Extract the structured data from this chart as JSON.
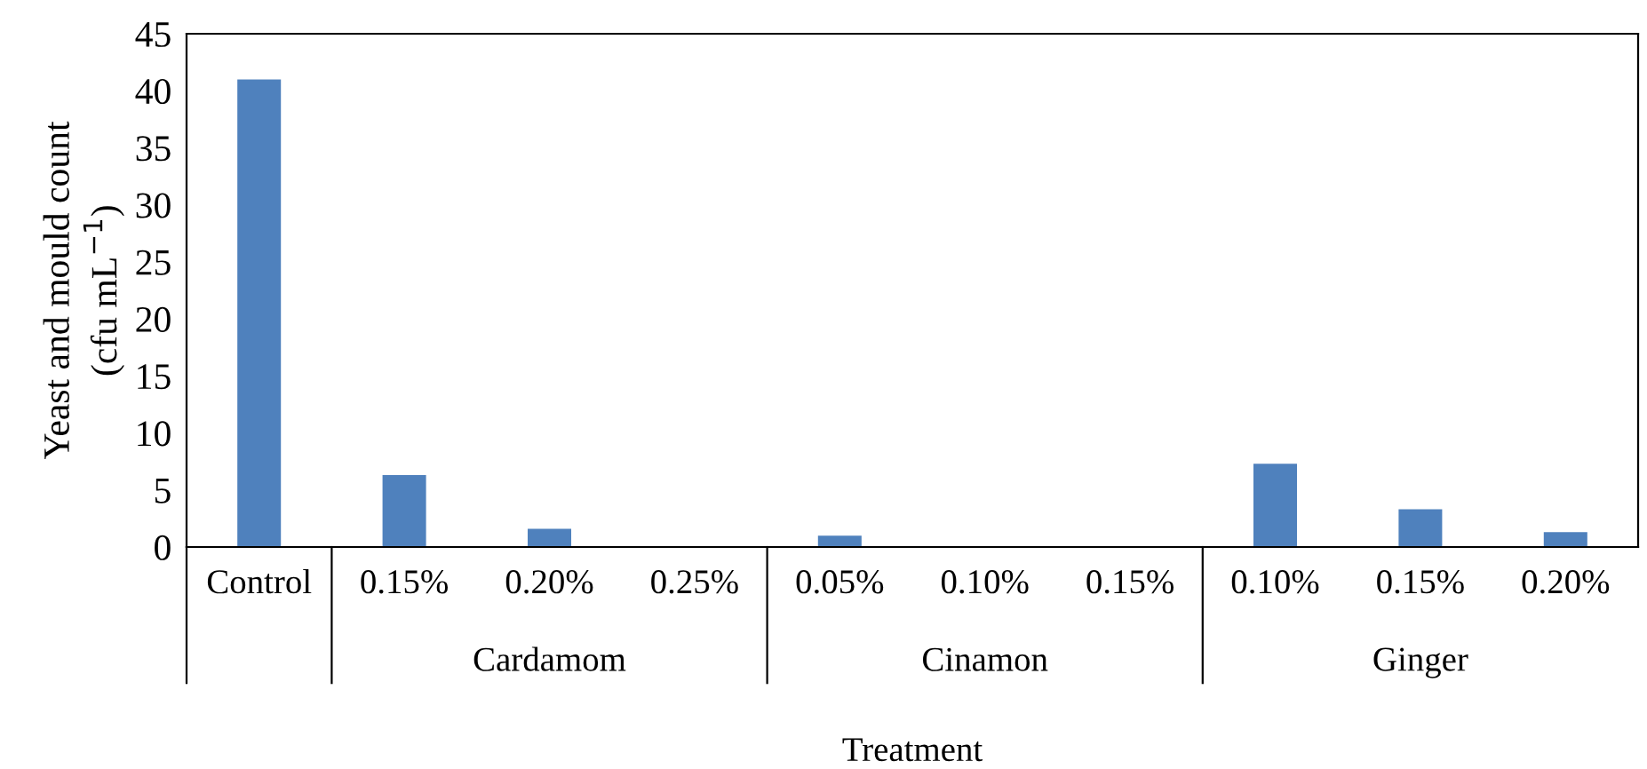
{
  "chart_data": {
    "type": "bar",
    "xlabel": "Treatment",
    "ylabel": "Yeast and mould count\n(cfu mL$^{−1}$)",
    "categories": [
      "Control",
      "0.15%",
      "0.20%",
      "0.25%",
      "0.05%",
      "0.10%",
      "0.15%",
      "0.10%",
      "0.15%",
      "0.20%"
    ],
    "values": [
      41.0,
      6.3,
      1.6,
      0,
      1.0,
      0,
      0,
      7.3,
      3.3,
      1.3
    ],
    "color": "#4f81bd",
    "annotations": [
      "Cardamom",
      "Cinamon",
      "Ginger"
    ],
    "ylim": [
      0,
      45
    ],
    "yticks": [
      0,
      5,
      10,
      15,
      20,
      25,
      30,
      35,
      40,
      45
    ],
    "grid": false,
    "legend": false
  }
}
